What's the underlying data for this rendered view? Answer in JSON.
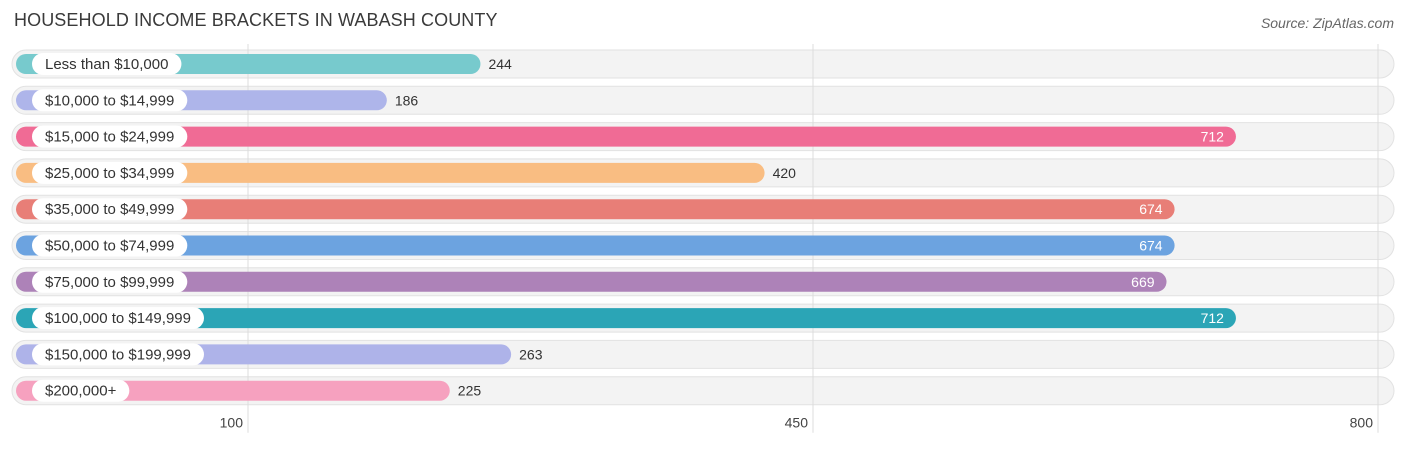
{
  "title": "HOUSEHOLD INCOME BRACKETS IN WABASH COUNTY",
  "source": "Source: ZipAtlas.com",
  "chart_data": {
    "type": "bar",
    "orientation": "horizontal",
    "categories": [
      "Less than $10,000",
      "$10,000 to $14,999",
      "$15,000 to $24,999",
      "$25,000 to $34,999",
      "$35,000 to $49,999",
      "$50,000 to $74,999",
      "$75,000 to $99,999",
      "$100,000 to $149,999",
      "$150,000 to $199,999",
      "$200,000+"
    ],
    "values": [
      244,
      186,
      712,
      420,
      674,
      674,
      669,
      712,
      263,
      225
    ],
    "colors": [
      "#77cacd",
      "#aeb5ea",
      "#f06b95",
      "#f9bd82",
      "#e87e77",
      "#6ca3e0",
      "#ad82b8",
      "#2ba5b6",
      "#aeb3e9",
      "#f6a1bf"
    ],
    "x_ticks": [
      100,
      450,
      800
    ],
    "xlim": [
      -45,
      800
    ],
    "grid": true,
    "title": "HOUSEHOLD INCOME BRACKETS IN WABASH COUNTY"
  }
}
